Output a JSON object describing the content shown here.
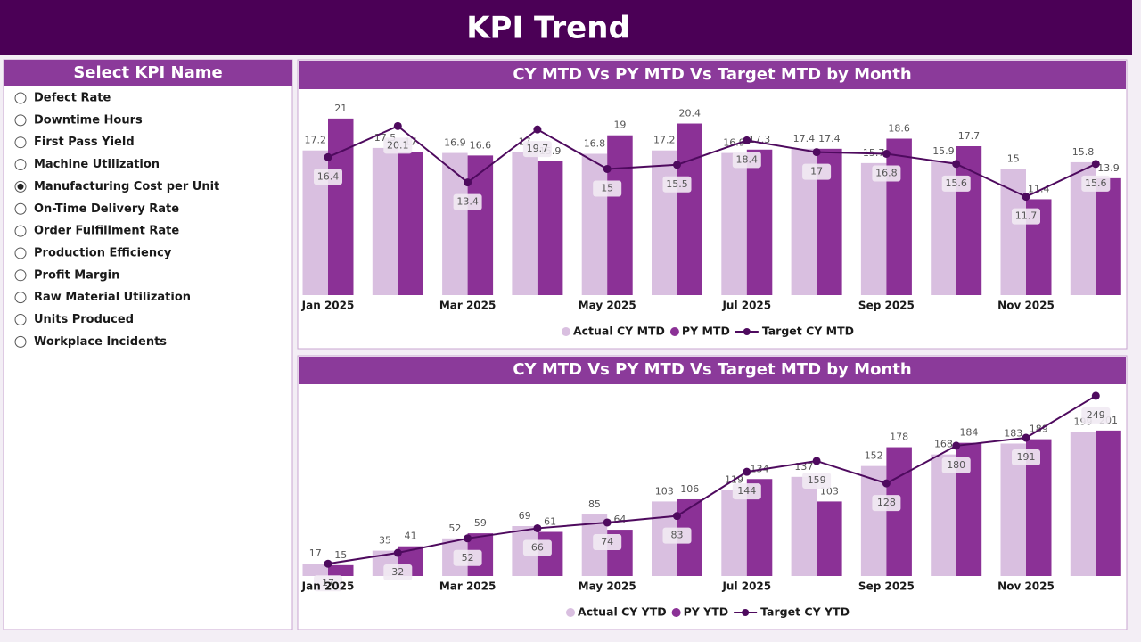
{
  "header": {
    "title": "KPI Trend"
  },
  "slicer": {
    "title": "Select KPI Name",
    "items": [
      "Defect Rate",
      "Downtime Hours",
      "First Pass Yield",
      "Machine Utilization",
      "Manufacturing Cost per Unit",
      "On-Time Delivery Rate",
      "Order Fulfillment Rate",
      "Production Efficiency",
      "Profit Margin",
      "Raw Material Utilization",
      "Units Produced",
      "Workplace Incidents"
    ],
    "selected_index": 4
  },
  "chart_data": [
    {
      "type": "combo",
      "title": "CY MTD Vs PY MTD Vs Target MTD by Month",
      "categories": [
        "Jan 2025",
        null,
        "Mar 2025",
        null,
        "May 2025",
        null,
        "Jul 2025",
        null,
        "Sep 2025",
        null,
        "Nov 2025",
        null
      ],
      "ylim": [
        0,
        23
      ],
      "series": [
        {
          "name": "Actual CY MTD",
          "kind": "bar",
          "color": "#d9bfe0",
          "values": [
            17.2,
            17.5,
            16.9,
            17.0,
            16.8,
            17.2,
            16.9,
            17.4,
            15.7,
            15.9,
            15.0,
            15.8
          ]
        },
        {
          "name": "PY MTD",
          "kind": "bar",
          "color": "#8b3196",
          "values": [
            21.0,
            17.0,
            16.6,
            15.9,
            19.0,
            20.4,
            17.3,
            17.4,
            18.6,
            17.7,
            11.4,
            13.9
          ]
        },
        {
          "name": "Target CY MTD",
          "kind": "line",
          "color": "#4e0a5e",
          "values": [
            16.4,
            20.1,
            13.4,
            19.7,
            15.0,
            15.5,
            18.4,
            17.0,
            16.8,
            15.6,
            11.7,
            15.6
          ]
        }
      ]
    },
    {
      "type": "combo",
      "title": "CY MTD Vs PY MTD Vs Target MTD by Month",
      "categories": [
        "Jan 2025",
        null,
        "Mar 2025",
        null,
        "May 2025",
        null,
        "Jul 2025",
        null,
        "Sep 2025",
        null,
        "Nov 2025",
        null
      ],
      "ylim": [
        0,
        260
      ],
      "series": [
        {
          "name": "Actual CY YTD",
          "kind": "bar",
          "color": "#d9bfe0",
          "values": [
            17,
            35,
            52,
            69,
            85,
            103,
            119,
            137,
            152,
            168,
            183,
            199
          ]
        },
        {
          "name": "PY YTD",
          "kind": "bar",
          "color": "#8b3196",
          "values": [
            15,
            41,
            59,
            61,
            64,
            106,
            134,
            103,
            178,
            184,
            189,
            201
          ]
        },
        {
          "name": "Target CY YTD",
          "kind": "line",
          "color": "#4e0a5e",
          "values": [
            17,
            32,
            52,
            66,
            74,
            83,
            144,
            159,
            128,
            180,
            191,
            249
          ]
        }
      ]
    }
  ]
}
